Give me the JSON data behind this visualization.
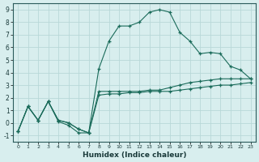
{
  "xlabel": "Humidex (Indice chaleur)",
  "bg_color": "#d8eeee",
  "grid_color": "#b8d8d8",
  "line_color": "#1a6b5a",
  "xlim": [
    -0.5,
    23.5
  ],
  "ylim": [
    -1.5,
    9.5
  ],
  "xticks": [
    0,
    1,
    2,
    3,
    4,
    5,
    6,
    7,
    8,
    9,
    10,
    11,
    12,
    13,
    14,
    15,
    16,
    17,
    18,
    19,
    20,
    21,
    22,
    23
  ],
  "yticks": [
    -1,
    0,
    1,
    2,
    3,
    4,
    5,
    6,
    7,
    8,
    9
  ],
  "series": [
    {
      "x": [
        0,
        1,
        2,
        3,
        4,
        5,
        6,
        7,
        8,
        9,
        10,
        11,
        12,
        13,
        14,
        15,
        16,
        17,
        18,
        19,
        20,
        21,
        22,
        23
      ],
      "y": [
        -0.7,
        1.3,
        0.2,
        1.7,
        0.1,
        -0.2,
        -0.8,
        -0.8,
        4.3,
        6.5,
        7.7,
        7.7,
        8.0,
        8.8,
        9.0,
        8.8,
        7.2,
        6.5,
        5.5,
        5.6,
        5.5,
        4.5,
        4.2,
        3.5
      ]
    },
    {
      "x": [
        0,
        1,
        2,
        3,
        4,
        5,
        6,
        7,
        8,
        9,
        10,
        11,
        12,
        13,
        14,
        15,
        16,
        17,
        18,
        19,
        20,
        21,
        22,
        23
      ],
      "y": [
        -0.7,
        1.3,
        0.2,
        1.7,
        0.2,
        0.0,
        -0.5,
        -0.8,
        2.5,
        2.5,
        2.5,
        2.5,
        2.5,
        2.6,
        2.6,
        2.8,
        3.0,
        3.2,
        3.3,
        3.4,
        3.5,
        3.5,
        3.5,
        3.5
      ]
    },
    {
      "x": [
        0,
        1,
        2,
        3,
        4,
        5,
        6,
        7,
        8,
        9,
        10,
        11,
        12,
        13,
        14,
        15,
        16,
        17,
        18,
        19,
        20,
        21,
        22,
        23
      ],
      "y": [
        -0.7,
        1.3,
        0.2,
        1.7,
        0.2,
        0.0,
        -0.5,
        -0.8,
        2.2,
        2.3,
        2.3,
        2.4,
        2.4,
        2.5,
        2.5,
        2.5,
        2.6,
        2.7,
        2.8,
        2.9,
        3.0,
        3.0,
        3.1,
        3.2
      ]
    }
  ]
}
